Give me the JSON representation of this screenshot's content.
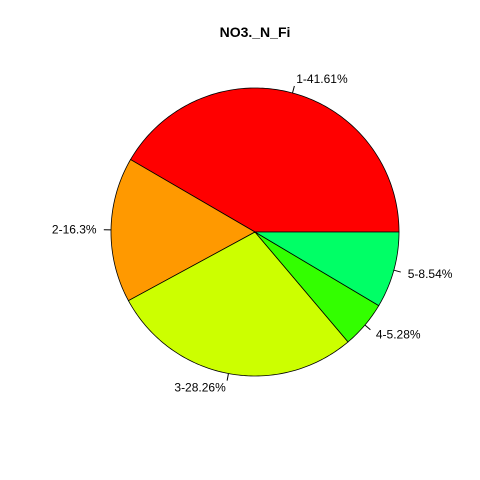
{
  "chart_data": {
    "type": "pie",
    "title": "NO3._N_Fi",
    "direction": "counterclockwise",
    "start_angle_deg": 0,
    "slices": [
      {
        "label": "1-41.61%",
        "value": 41.61,
        "color": "#FF0000"
      },
      {
        "label": "2-16.3%",
        "value": 16.3,
        "color": "#FF9900"
      },
      {
        "label": "3-28.26%",
        "value": 28.26,
        "color": "#CCFF00"
      },
      {
        "label": "4-5.28%",
        "value": 5.28,
        "color": "#33FF00"
      },
      {
        "label": "5-8.54%",
        "value": 8.54,
        "color": "#00FF66"
      }
    ]
  }
}
